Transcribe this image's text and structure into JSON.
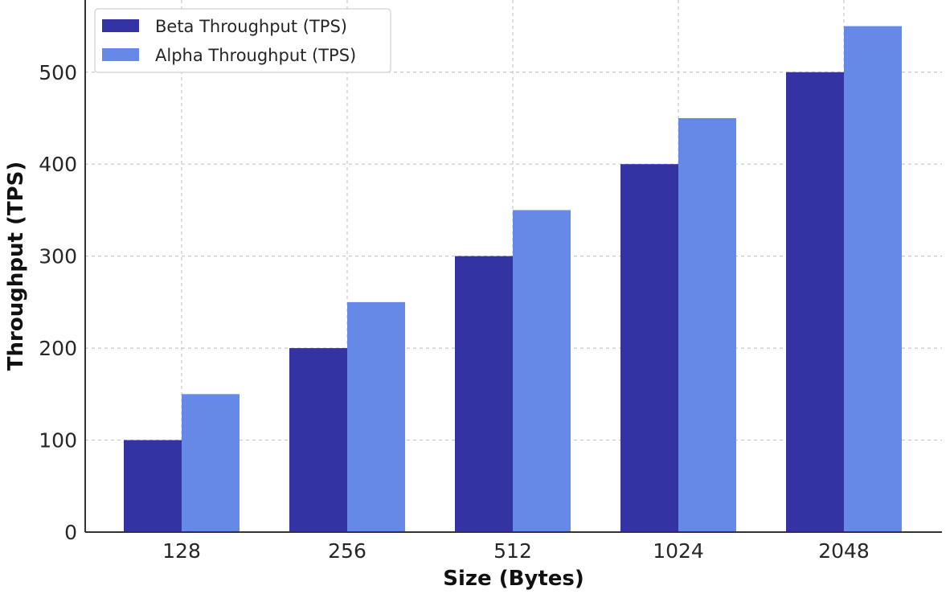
{
  "chart_data": {
    "type": "bar",
    "title": "",
    "xlabel": "Size (Bytes)",
    "ylabel": "Throughput (TPS)",
    "categories": [
      "128",
      "256",
      "512",
      "1024",
      "2048"
    ],
    "series": [
      {
        "name": "Beta Throughput (TPS)",
        "values": [
          100,
          200,
          300,
          400,
          500
        ],
        "color": "#3333a3"
      },
      {
        "name": "Alpha Throughput (TPS)",
        "values": [
          150,
          250,
          350,
          450,
          550
        ],
        "color": "#6688e6"
      }
    ],
    "ylim": [
      0,
      570
    ],
    "yticks": [
      0,
      100,
      200,
      300,
      400,
      500
    ],
    "grid": true,
    "legend_position": "top-left"
  }
}
